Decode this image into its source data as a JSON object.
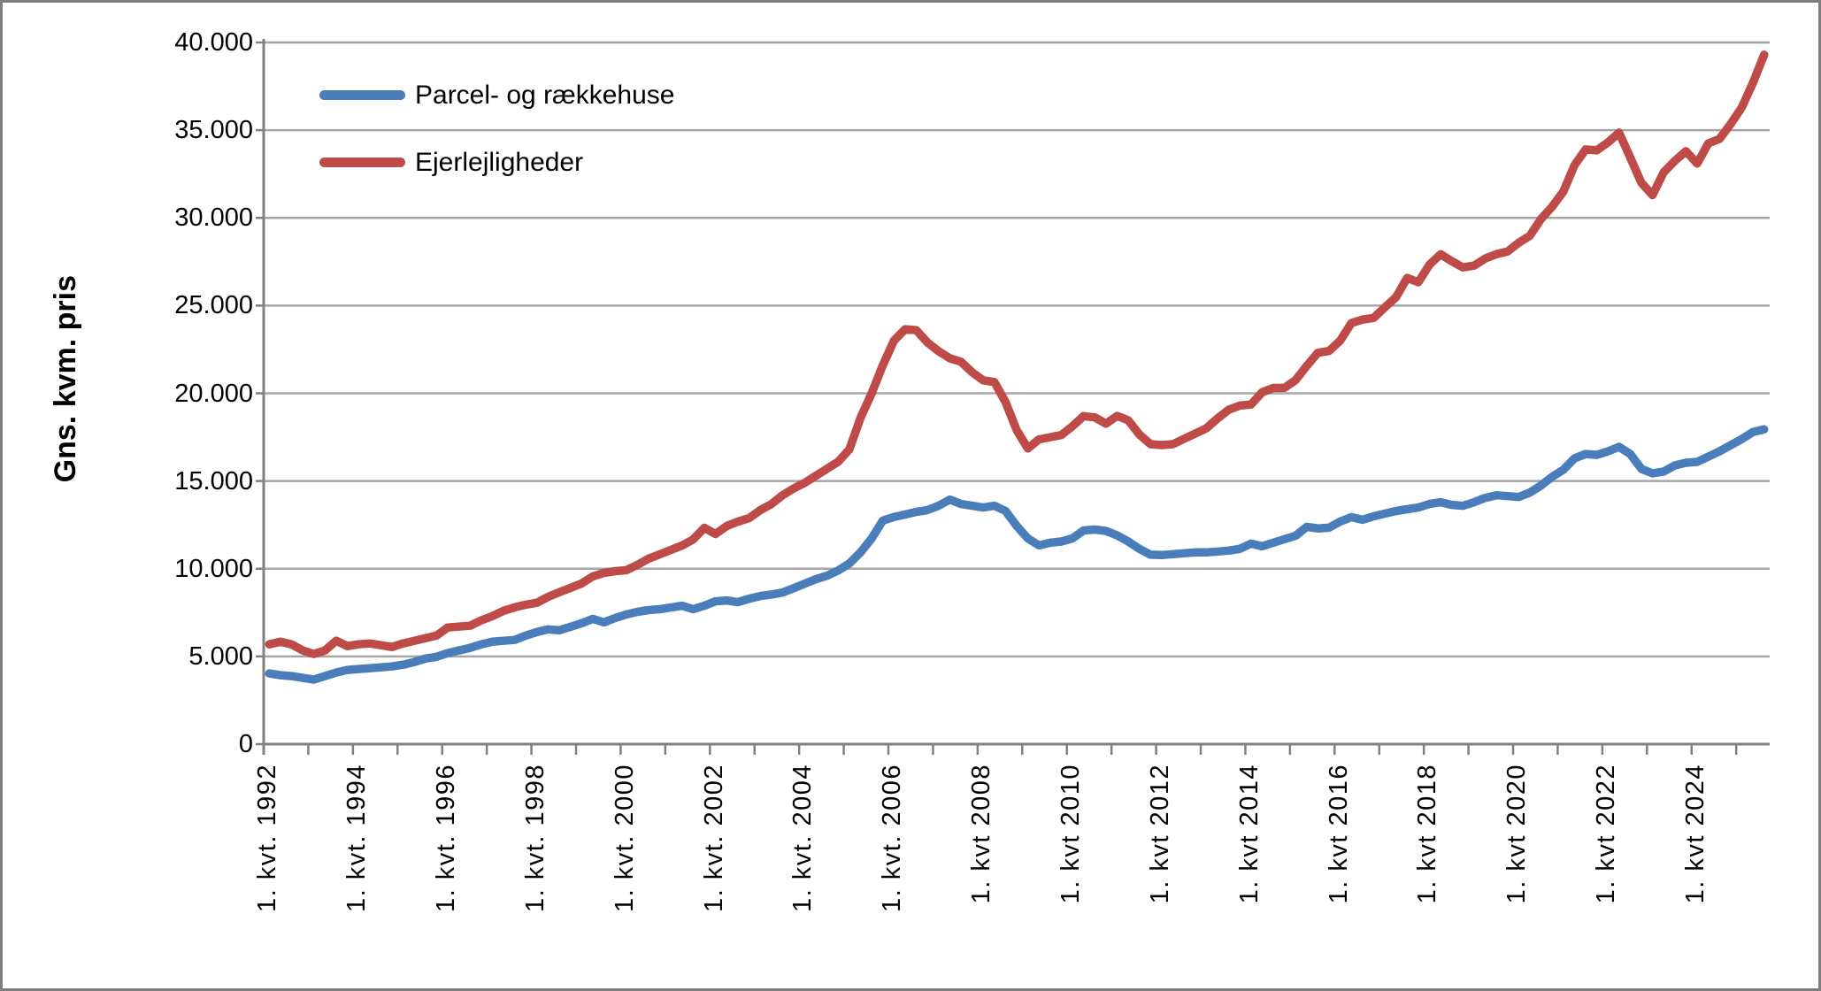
{
  "chart_data": {
    "type": "line",
    "title": "",
    "ylabel": "Gns. kvm. pris",
    "xlabel": "",
    "x_unit": "quarter",
    "x_start": "1. kvt. 1992",
    "x_end": "3. kvt. 2025",
    "ylim": [
      0,
      40000
    ],
    "y_tick_step": 5000,
    "grid": true,
    "legend_position": "inside-top-left",
    "grid_color": "#A6A6A6",
    "axis_color": "#808080",
    "y_tick_labels": [
      "0",
      "5.000",
      "10.000",
      "15.000",
      "20.000",
      "25.000",
      "30.000",
      "35.000",
      "40.000"
    ],
    "x_tick_labels": [
      "1. kvt. 1992",
      "1. kvt. 1994",
      "1. kvt. 1996",
      "1. kvt. 1998",
      "1. kvt. 2000",
      "1. kvt. 2002",
      "1. kvt. 2004",
      "1. kvt. 2006",
      "1. kvt 2008",
      "1. kvt 2010",
      "1. kvt 2012",
      "1. kvt 2014",
      "1. kvt 2016",
      "1. kvt 2018",
      "1. kvt 2020",
      "1. kvt 2022",
      "1. kvt 2024"
    ],
    "x_tick_label_every_quarters": 8,
    "series": [
      {
        "name": "Parcel- og rækkehuse",
        "color": "#4A7EBB",
        "values": [
          4030,
          3930,
          3880,
          3780,
          3680,
          3880,
          4080,
          4230,
          4280,
          4330,
          4380,
          4430,
          4530,
          4680,
          4880,
          4980,
          5190,
          5340,
          5490,
          5690,
          5840,
          5890,
          5940,
          6190,
          6390,
          6540,
          6490,
          6690,
          6890,
          7140,
          6940,
          7190,
          7390,
          7540,
          7640,
          7690,
          7790,
          7890,
          7690,
          7890,
          8140,
          8190,
          8090,
          8290,
          8440,
          8530,
          8640,
          8890,
          9150,
          9400,
          9600,
          9900,
          10300,
          10930,
          11730,
          12740,
          12950,
          13090,
          13240,
          13340,
          13590,
          13940,
          13690,
          13590,
          13490,
          13590,
          13290,
          12440,
          11730,
          11330,
          11480,
          11550,
          11730,
          12180,
          12230,
          12150,
          11900,
          11550,
          11130,
          10800,
          10780,
          10830,
          10880,
          10930,
          10930,
          10980,
          11030,
          11130,
          11430,
          11280,
          11480,
          11680,
          11880,
          12390,
          12300,
          12340,
          12690,
          12940,
          12790,
          12990,
          13140,
          13290,
          13390,
          13490,
          13690,
          13790,
          13640,
          13590,
          13790,
          14040,
          14190,
          14140,
          14090,
          14340,
          14740,
          15240,
          15640,
          16290,
          16540,
          16490,
          16690,
          16950,
          16540,
          15690,
          15440,
          15540,
          15890,
          16040,
          16090,
          16390,
          16690,
          17040,
          17390,
          17790,
          17940
        ]
      },
      {
        "name": "Ejerlejligheder",
        "color": "#BE4B48",
        "values": [
          5690,
          5840,
          5690,
          5340,
          5140,
          5340,
          5890,
          5590,
          5690,
          5740,
          5640,
          5540,
          5740,
          5890,
          6040,
          6190,
          6650,
          6700,
          6750,
          7050,
          7300,
          7600,
          7800,
          7950,
          8060,
          8400,
          8660,
          8910,
          9160,
          9560,
          9760,
          9860,
          9910,
          10220,
          10570,
          10820,
          11070,
          11320,
          11670,
          12330,
          11980,
          12430,
          12680,
          12880,
          13330,
          13680,
          14180,
          14580,
          14900,
          15300,
          15700,
          16100,
          16800,
          18600,
          20000,
          21600,
          23000,
          23650,
          23600,
          22900,
          22400,
          22000,
          21800,
          21200,
          20740,
          20640,
          19500,
          17900,
          16860,
          17370,
          17500,
          17620,
          18120,
          18700,
          18630,
          18270,
          18710,
          18460,
          17650,
          17100,
          17050,
          17100,
          17400,
          17700,
          18000,
          18560,
          19060,
          19300,
          19360,
          20060,
          20310,
          20310,
          20750,
          21560,
          22310,
          22410,
          23000,
          24000,
          24200,
          24300,
          24900,
          25480,
          26580,
          26330,
          27330,
          27930,
          27530,
          27180,
          27280,
          27680,
          27930,
          28080,
          28580,
          28980,
          29930,
          30640,
          31500,
          33000,
          33900,
          33850,
          34300,
          34860,
          33450,
          32000,
          31300,
          32600,
          33250,
          33800,
          33100,
          34250,
          34500,
          35350,
          36300,
          37700,
          39300
        ]
      }
    ]
  }
}
